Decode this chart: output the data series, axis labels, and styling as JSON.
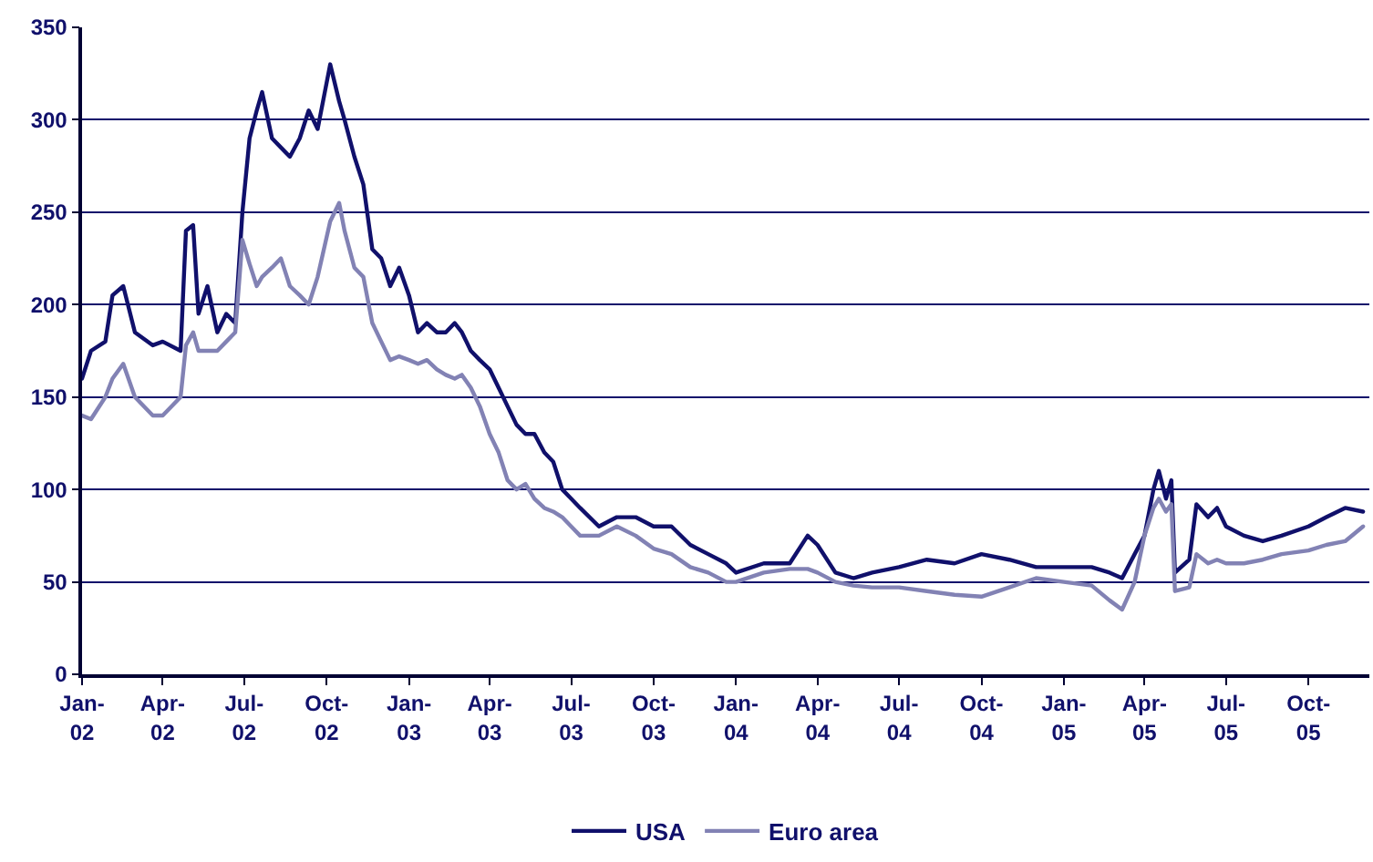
{
  "chart_data": {
    "type": "line",
    "x": [
      "2002-01-01",
      "2002-01-11",
      "2002-01-27",
      "2002-02-04",
      "2002-02-16",
      "2002-03-01",
      "2002-03-21",
      "2002-04-01",
      "2002-04-21",
      "2002-04-27",
      "2002-05-05",
      "2002-05-11",
      "2002-05-21",
      "2002-06-01",
      "2002-06-11",
      "2002-06-21",
      "2002-06-29",
      "2002-07-07",
      "2002-07-15",
      "2002-07-21",
      "2002-08-01",
      "2002-08-11",
      "2002-08-21",
      "2002-09-01",
      "2002-09-11",
      "2002-09-21",
      "2002-10-05",
      "2002-10-15",
      "2002-10-21",
      "2002-11-01",
      "2002-11-11",
      "2002-11-21",
      "2002-12-01",
      "2002-12-11",
      "2002-12-21",
      "2003-01-01",
      "2003-01-11",
      "2003-01-21",
      "2003-02-01",
      "2003-02-11",
      "2003-02-21",
      "2003-03-01",
      "2003-03-11",
      "2003-03-21",
      "2003-04-01",
      "2003-04-11",
      "2003-04-21",
      "2003-05-01",
      "2003-05-11",
      "2003-05-21",
      "2003-06-01",
      "2003-06-11",
      "2003-06-21",
      "2003-07-01",
      "2003-07-11",
      "2003-08-01",
      "2003-08-21",
      "2003-09-11",
      "2003-10-01",
      "2003-10-21",
      "2003-11-11",
      "2003-12-01",
      "2003-12-21",
      "2004-01-01",
      "2004-02-01",
      "2004-03-01",
      "2004-03-21",
      "2004-04-01",
      "2004-04-21",
      "2004-05-11",
      "2004-06-01",
      "2004-07-01",
      "2004-08-01",
      "2004-09-01",
      "2004-10-01",
      "2004-11-01",
      "2004-12-01",
      "2005-01-01",
      "2005-02-01",
      "2005-02-21",
      "2005-03-07",
      "2005-03-21",
      "2005-04-01",
      "2005-04-11",
      "2005-04-17",
      "2005-04-25",
      "2005-05-01",
      "2005-05-05",
      "2005-05-21",
      "2005-05-29",
      "2005-06-11",
      "2005-06-21",
      "2005-07-01",
      "2005-07-21",
      "2005-08-11",
      "2005-09-01",
      "2005-10-01",
      "2005-10-21",
      "2005-11-11",
      "2005-12-01"
    ],
    "series": [
      {
        "name": "USA",
        "color": "#10106b",
        "values": [
          160,
          175,
          180,
          205,
          210,
          185,
          178,
          180,
          175,
          240,
          243,
          195,
          210,
          185,
          195,
          190,
          250,
          290,
          305,
          315,
          290,
          285,
          280,
          290,
          305,
          295,
          330,
          310,
          300,
          280,
          265,
          230,
          225,
          210,
          220,
          205,
          185,
          190,
          185,
          185,
          190,
          185,
          175,
          170,
          165,
          155,
          145,
          135,
          130,
          130,
          120,
          115,
          100,
          95,
          90,
          80,
          85,
          85,
          80,
          80,
          70,
          65,
          60,
          55,
          60,
          60,
          75,
          70,
          55,
          52,
          55,
          58,
          62,
          60,
          65,
          62,
          58,
          58,
          58,
          55,
          52,
          65,
          75,
          100,
          110,
          95,
          105,
          55,
          62,
          92,
          85,
          90,
          80,
          75,
          72,
          75,
          80,
          85,
          90,
          88
        ]
      },
      {
        "name": "Euro area",
        "color": "#8282b4",
        "values": [
          140,
          138,
          150,
          160,
          168,
          150,
          140,
          140,
          150,
          178,
          185,
          175,
          175,
          175,
          180,
          185,
          235,
          222,
          210,
          215,
          220,
          225,
          210,
          205,
          200,
          215,
          245,
          255,
          240,
          220,
          215,
          190,
          180,
          170,
          172,
          170,
          168,
          170,
          165,
          162,
          160,
          162,
          155,
          145,
          130,
          120,
          105,
          100,
          103,
          95,
          90,
          88,
          85,
          80,
          75,
          75,
          80,
          75,
          68,
          65,
          58,
          55,
          50,
          50,
          55,
          57,
          57,
          55,
          50,
          48,
          47,
          47,
          45,
          43,
          42,
          47,
          52,
          50,
          48,
          40,
          35,
          50,
          75,
          90,
          95,
          88,
          92,
          45,
          47,
          65,
          60,
          62,
          60,
          60,
          62,
          65,
          67,
          70,
          72,
          80
        ]
      }
    ],
    "xlim": [
      "2002-01-01",
      "2005-12-08"
    ],
    "xticks": [
      {
        "value": "2002-01-01",
        "label": "Jan-\n02"
      },
      {
        "value": "2002-04-01",
        "label": "Apr-\n02"
      },
      {
        "value": "2002-07-01",
        "label": "Jul-\n02"
      },
      {
        "value": "2002-10-01",
        "label": "Oct-\n02"
      },
      {
        "value": "2003-01-01",
        "label": "Jan-\n03"
      },
      {
        "value": "2003-04-01",
        "label": "Apr-\n03"
      },
      {
        "value": "2003-07-01",
        "label": "Jul-\n03"
      },
      {
        "value": "2003-10-01",
        "label": "Oct-\n03"
      },
      {
        "value": "2004-01-01",
        "label": "Jan-\n04"
      },
      {
        "value": "2004-04-01",
        "label": "Apr-\n04"
      },
      {
        "value": "2004-07-01",
        "label": "Jul-\n04"
      },
      {
        "value": "2004-10-01",
        "label": "Oct-\n04"
      },
      {
        "value": "2005-01-01",
        "label": "Jan-\n05"
      },
      {
        "value": "2005-04-01",
        "label": "Apr-\n05"
      },
      {
        "value": "2005-07-01",
        "label": "Jul-\n05"
      },
      {
        "value": "2005-10-01",
        "label": "Oct-\n05"
      }
    ],
    "ylim": [
      0,
      350
    ],
    "yticks": [
      0,
      50,
      100,
      150,
      200,
      250,
      300,
      350
    ],
    "grid": "y",
    "legend": "bottom",
    "marker": "none",
    "line_style": "solid"
  }
}
